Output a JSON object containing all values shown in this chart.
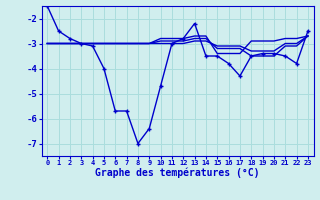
{
  "title": "Graphe des températures (°C)",
  "background_color": "#d0eeee",
  "grid_color": "#aadddd",
  "line_color": "#0000cc",
  "x_values": [
    0,
    1,
    2,
    3,
    4,
    5,
    6,
    7,
    8,
    9,
    10,
    11,
    12,
    13,
    14,
    15,
    16,
    17,
    18,
    19,
    20,
    21,
    22,
    23
  ],
  "xtick_labels": [
    "0",
    "1",
    "2",
    "3",
    "4",
    "5",
    "6",
    "7",
    "8",
    "9",
    "10",
    "11",
    "12",
    "13",
    "14",
    "15",
    "16",
    "17",
    "18",
    "19",
    "20",
    "21",
    "22",
    "23"
  ],
  "series1": [
    -1.5,
    -2.5,
    -2.8,
    -3.0,
    -3.1,
    -4.0,
    -5.7,
    -5.7,
    -7.0,
    -6.4,
    -4.7,
    -3.0,
    -2.8,
    -2.2,
    -3.5,
    -3.5,
    -3.8,
    -4.3,
    -3.5,
    -3.4,
    -3.4,
    -3.5,
    -3.8,
    -2.5
  ],
  "series2": [
    -3.0,
    -3.0,
    -3.0,
    -3.0,
    -3.0,
    -3.0,
    -3.0,
    -3.0,
    -3.0,
    -3.0,
    -3.0,
    -3.0,
    -3.0,
    -2.9,
    -2.9,
    -3.1,
    -3.1,
    -3.1,
    -3.3,
    -3.3,
    -3.3,
    -3.0,
    -3.0,
    -2.7
  ],
  "series3": [
    -3.0,
    -3.0,
    -3.0,
    -3.0,
    -3.0,
    -3.0,
    -3.0,
    -3.0,
    -3.0,
    -3.0,
    -2.9,
    -2.9,
    -2.9,
    -2.8,
    -2.8,
    -3.2,
    -3.2,
    -3.2,
    -3.5,
    -3.5,
    -3.5,
    -3.1,
    -3.1,
    -2.7
  ],
  "series4": [
    -3.0,
    -3.0,
    -3.0,
    -3.0,
    -3.0,
    -3.0,
    -3.0,
    -3.0,
    -3.0,
    -3.0,
    -2.8,
    -2.8,
    -2.8,
    -2.7,
    -2.7,
    -3.4,
    -3.4,
    -3.4,
    -2.9,
    -2.9,
    -2.9,
    -2.8,
    -2.8,
    -2.7
  ],
  "ylim": [
    -7.5,
    -1.5
  ],
  "yticks": [
    -7,
    -6,
    -5,
    -4,
    -3,
    -2
  ],
  "xlim": [
    -0.5,
    23.5
  ],
  "xlabel_fontsize": 7,
  "xlabel_bold": true,
  "xtick_fontsize": 5.0,
  "ytick_fontsize": 6.5,
  "linewidth": 1.0,
  "marker_size": 3.5
}
